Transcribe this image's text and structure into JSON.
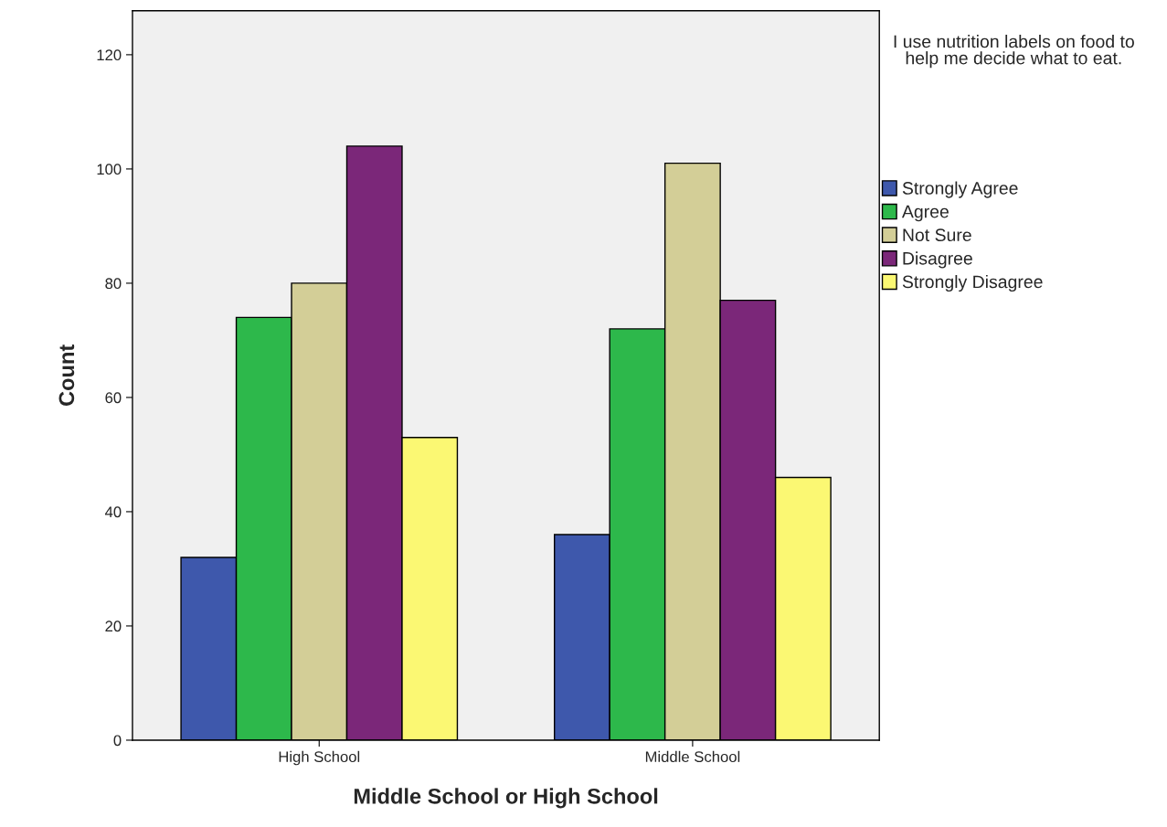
{
  "chart_data": {
    "type": "bar",
    "xlabel": "Middle School or High School",
    "ylabel": "Count",
    "legend_title": "I use nutrition labels on food to help me decide what to eat.",
    "categories": [
      "High School",
      "Middle School"
    ],
    "series": [
      {
        "name": "Strongly Agree",
        "color": "#3e58ac",
        "values": [
          32,
          36
        ]
      },
      {
        "name": "Agree",
        "color": "#2db84b",
        "values": [
          74,
          72
        ]
      },
      {
        "name": "Not Sure",
        "color": "#d3ce97",
        "values": [
          80,
          101
        ]
      },
      {
        "name": "Disagree",
        "color": "#7b2779",
        "values": [
          104,
          77
        ]
      },
      {
        "name": "Strongly Disagree",
        "color": "#fbf873",
        "values": [
          53,
          46
        ]
      }
    ],
    "ylim": [
      0,
      127.7
    ],
    "yticks": [
      0,
      20,
      40,
      60,
      80,
      100,
      120
    ],
    "grid": false,
    "legend": "right"
  }
}
